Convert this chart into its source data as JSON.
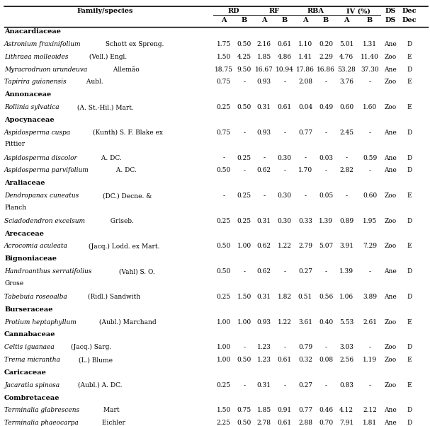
{
  "rows": [
    {
      "type": "family",
      "name": "Anacardiaceae"
    },
    {
      "type": "species",
      "name_italic": "Astronium fraxinifolium",
      "name_rest": " Schott ex Spreng.",
      "vals": [
        "1.75",
        "0.50",
        "2.16",
        "0.61",
        "1.10",
        "0.20",
        "5.01",
        "1.31",
        "Ane",
        "D"
      ]
    },
    {
      "type": "species",
      "name_italic": "Lithraea molleoides",
      "name_rest": " (Vell.) Engl.",
      "vals": [
        "1.50",
        "4.25",
        "1.85",
        "4.86",
        "1.41",
        "2.29",
        "4.76",
        "11.40",
        "Zoo",
        "E"
      ]
    },
    {
      "type": "species",
      "name_italic": "Myracrodruon urundeuva",
      "name_rest": " Allemão",
      "vals": [
        "18.75",
        "9.50",
        "16.67",
        "10.94",
        "17.86",
        "16.86",
        "53.28",
        "37.30",
        "Ane",
        "D"
      ]
    },
    {
      "type": "species",
      "name_italic": "Tapirira guianensis",
      "name_rest": " Aubl.",
      "vals": [
        "0.75",
        "-",
        "0.93",
        "-",
        "2.08",
        "-",
        "3.76",
        "-",
        "Zoo",
        "E"
      ]
    },
    {
      "type": "family",
      "name": "Annonaceae"
    },
    {
      "type": "species",
      "name_italic": "Rollinia sylvatica",
      "name_rest": " (A. St.-Hil.) Mart.",
      "vals": [
        "0.25",
        "0.50",
        "0.31",
        "0.61",
        "0.04",
        "0.49",
        "0.60",
        "1.60",
        "Zoo",
        "E"
      ]
    },
    {
      "type": "family",
      "name": "Apocynaceae"
    },
    {
      "type": "species",
      "name_italic": "Aspidosperma cuspa",
      "name_rest": " (Kunth) S. F. Blake ex|Pittier",
      "vals": [
        "0.75",
        "-",
        "0.93",
        "-",
        "0.77",
        "-",
        "2.45",
        "-",
        "Ane",
        "D"
      ]
    },
    {
      "type": "species",
      "name_italic": "Aspidosperma discolor",
      "name_rest": " A. DC.",
      "vals": [
        "-",
        "0.25",
        "-",
        "0.30",
        "-",
        "0.03",
        "-",
        "0.59",
        "Ane",
        "D"
      ]
    },
    {
      "type": "species",
      "name_italic": "Aspidosperma parvifolium",
      "name_rest": " A. DC.",
      "vals": [
        "0.50",
        "-",
        "0.62",
        "-",
        "1.70",
        "-",
        "2.82",
        "-",
        "Ane",
        "D"
      ]
    },
    {
      "type": "family",
      "name": "Araliaceae"
    },
    {
      "type": "species",
      "name_italic": "Dendropanax cuneatus",
      "name_rest": " (DC.) Decne. &|Planch",
      "vals": [
        "-",
        "0.25",
        "-",
        "0.30",
        "-",
        "0.05",
        "-",
        "0.60",
        "Zoo",
        "E"
      ]
    },
    {
      "type": "species",
      "name_italic": "Sciadodendron excelsum",
      "name_rest": " Griseb.",
      "vals": [
        "0.25",
        "0.25",
        "0.31",
        "0.30",
        "0.33",
        "1.39",
        "0.89",
        "1.95",
        "Zoo",
        "D"
      ]
    },
    {
      "type": "family",
      "name": "Arecaceae"
    },
    {
      "type": "species",
      "name_italic": "Acrocomia aculeata",
      "name_rest": " (Jacq.) Lodd. ex Mart.",
      "vals": [
        "0.50",
        "1.00",
        "0.62",
        "1.22",
        "2.79",
        "5.07",
        "3.91",
        "7.29",
        "Zoo",
        "E"
      ]
    },
    {
      "type": "family",
      "name": "Bignoniaceae"
    },
    {
      "type": "species",
      "name_italic": "Handroanthus serratifolius",
      "name_rest": " (Vahl) S. O.|Grose",
      "vals": [
        "0.50",
        "-",
        "0.62",
        "-",
        "0.27",
        "-",
        "1.39",
        "-",
        "Ane",
        "D"
      ]
    },
    {
      "type": "species",
      "name_italic": "Tabebuia roseoalba",
      "name_rest": " (Ridl.) Sandwith",
      "vals": [
        "0.25",
        "1.50",
        "0.31",
        "1.82",
        "0.51",
        "0.56",
        "1.06",
        "3.89",
        "Ane",
        "D"
      ]
    },
    {
      "type": "family",
      "name": "Burseraceae"
    },
    {
      "type": "species",
      "name_italic": "Protium heptaphyllum",
      "name_rest": " (Aubl.) Marchand",
      "vals": [
        "1.00",
        "1.00",
        "0.93",
        "1.22",
        "3.61",
        "0.40",
        "5.53",
        "2.61",
        "Zoo",
        "E"
      ]
    },
    {
      "type": "family",
      "name": "Cannabaceae"
    },
    {
      "type": "species",
      "name_italic": "Celtis iguanaea",
      "name_rest": " (Jacq.) Sarg.",
      "vals": [
        "1.00",
        "-",
        "1.23",
        "-",
        "0.79",
        "-",
        "3.03",
        "-",
        "Zoo",
        "D"
      ]
    },
    {
      "type": "species",
      "name_italic": "Trema micrantha",
      "name_rest": " (L.) Blume",
      "vals": [
        "1.00",
        "0.50",
        "1.23",
        "0.61",
        "0.32",
        "0.08",
        "2.56",
        "1.19",
        "Zoo",
        "E"
      ]
    },
    {
      "type": "family",
      "name": "Caricaceae"
    },
    {
      "type": "species",
      "name_italic": "Jacaratia spinosa",
      "name_rest": " (Aubl.) A. DC.",
      "vals": [
        "0.25",
        "-",
        "0.31",
        "-",
        "0.27",
        "-",
        "0.83",
        "-",
        "Zoo",
        "E"
      ]
    },
    {
      "type": "family",
      "name": "Combretaceae"
    },
    {
      "type": "species",
      "name_italic": "Terminalia glabrescens",
      "name_rest": " Mart",
      "vals": [
        "1.50",
        "0.75",
        "1.85",
        "0.91",
        "0.77",
        "0.46",
        "4.12",
        "2.12",
        "Ane",
        "D"
      ]
    },
    {
      "type": "species",
      "name_italic": "Terminalia phaeocarpa",
      "name_rest": " Eichler",
      "vals": [
        "2.25",
        "0.50",
        "2.78",
        "0.61",
        "2.88",
        "0.70",
        "7.91",
        "1.81",
        "Ane",
        "D"
      ]
    }
  ],
  "col_x": {
    "A_RD": 0.52,
    "B_RD": 0.568,
    "A_RF": 0.614,
    "B_RF": 0.662,
    "A_RBA": 0.71,
    "B_RBA": 0.758,
    "A_IV": 0.806,
    "B_IV": 0.86,
    "DS": 0.908,
    "Dec": 0.952
  },
  "col_order": [
    "A_RD",
    "B_RD",
    "A_RF",
    "B_RF",
    "A_RBA",
    "B_RBA",
    "A_IV",
    "B_IV",
    "DS",
    "Dec"
  ],
  "background_color": "#ffffff",
  "font_size": 6.5,
  "header_font_size": 7.0
}
